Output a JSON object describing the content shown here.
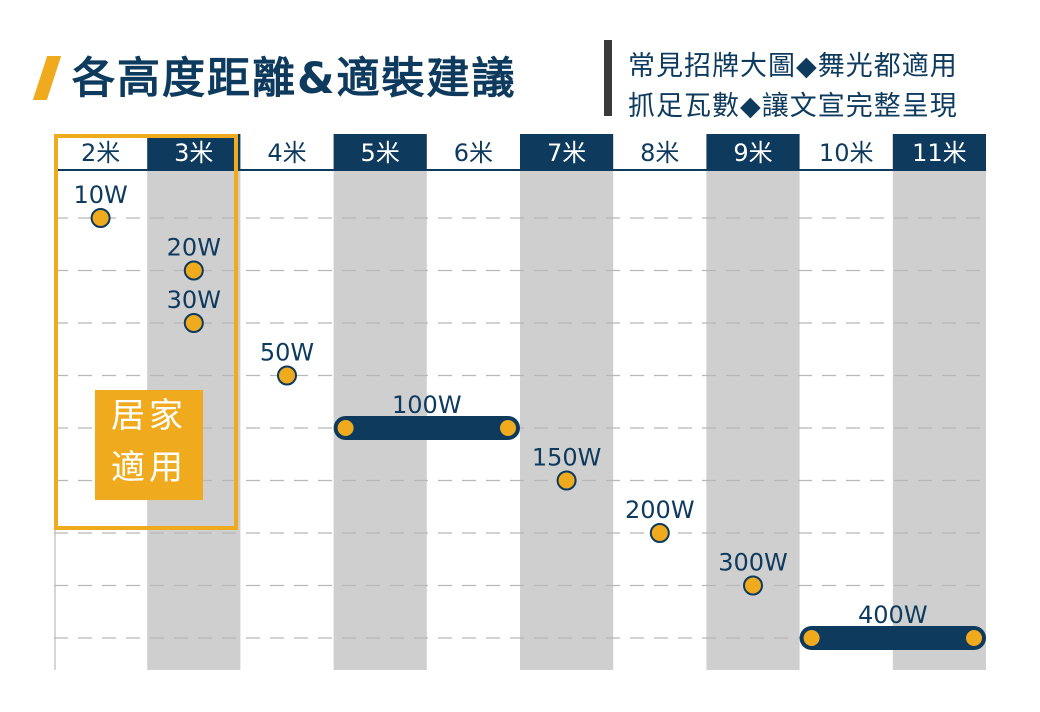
{
  "header": {
    "title": "各高度距離&適裝建議",
    "subtitle_line1": "常見招牌大圖◆舞光都適用",
    "subtitle_line2": "抓足瓦數◆讓文宣完整呈現"
  },
  "home_label": {
    "line1": "居家",
    "line2": "適用"
  },
  "colors": {
    "navy": "#0e3a5e",
    "gold": "#f0aa1e",
    "column_gray": "#cfcfcf"
  },
  "chart_data": {
    "type": "table",
    "categories": [
      "2米",
      "3米",
      "4米",
      "5米",
      "6米",
      "7米",
      "8米",
      "9米",
      "10米",
      "11米"
    ],
    "points": [
      {
        "label": "10W",
        "start": "2米",
        "end": "2米"
      },
      {
        "label": "20W",
        "start": "3米",
        "end": "3米"
      },
      {
        "label": "30W",
        "start": "3米",
        "end": "3米"
      },
      {
        "label": "50W",
        "start": "4米",
        "end": "4米"
      },
      {
        "label": "100W",
        "start": "5米",
        "end": "6米"
      },
      {
        "label": "150W",
        "start": "7米",
        "end": "7米"
      },
      {
        "label": "200W",
        "start": "8米",
        "end": "8米"
      },
      {
        "label": "300W",
        "start": "9米",
        "end": "9米"
      },
      {
        "label": "400W",
        "start": "10米",
        "end": "11米"
      }
    ],
    "highlighted_categories": [
      "2米",
      "3米"
    ],
    "grid": true
  }
}
